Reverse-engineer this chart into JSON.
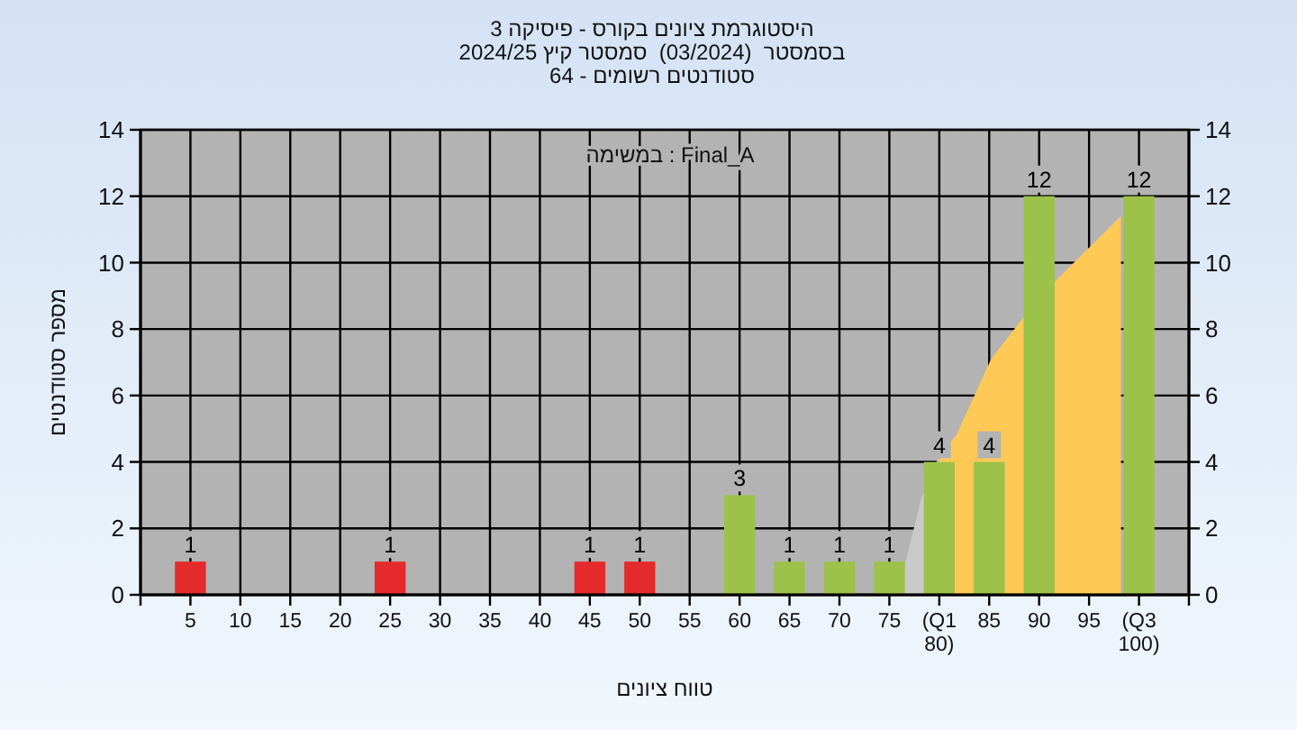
{
  "chart_data": {
    "type": "bar",
    "title": "היסטוגרמת ציונים בקורס - פיסיקה 3",
    "subtitle": "בסמסטר  (03/2024)  סמסטר קיץ 2024/25\nסטודנטים רשומים - 64",
    "xlabel": "טווח ציונים",
    "ylabel": "מספר סטודנטים",
    "annotations": [
      "במשימה : Final_A"
    ],
    "series": [
      {
        "type": "area",
        "color": "#c9c9c9",
        "x": [
          75.8,
          78.2,
          80
        ],
        "values": [
          0,
          2.9,
          4.2
        ]
      },
      {
        "type": "area",
        "color": "#ffc955",
        "x": [
          80,
          81.7,
          85.2,
          88.3,
          91.8,
          98.2
        ],
        "values": [
          4.2,
          4.8,
          7.1,
          8.3,
          9.5,
          11.4
        ]
      },
      {
        "x": [
          5,
          25,
          45,
          50,
          60,
          65,
          70,
          75,
          80,
          85,
          90,
          100
        ],
        "values": [
          1,
          1,
          1,
          1,
          3,
          1,
          1,
          1,
          4,
          4,
          12,
          12
        ],
        "value_labels": [
          "1",
          "1",
          "1",
          "1",
          "3",
          "1",
          "1",
          "1",
          "4",
          "4",
          "12",
          "12"
        ],
        "colors": [
          "#e42a2a",
          "#e42a2a",
          "#e42a2a",
          "#e42a2a",
          "#9cc24a",
          "#9cc24a",
          "#9cc24a",
          "#9cc24a",
          "#9cc24a",
          "#9cc24a",
          "#9cc24a",
          "#9cc24a"
        ]
      }
    ],
    "xlim": [
      0,
      105
    ],
    "xticks": [
      {
        "value": 0,
        "label": null
      },
      5,
      10,
      15,
      20,
      25,
      30,
      35,
      40,
      45,
      50,
      55,
      60,
      65,
      70,
      75,
      {
        "value": 80,
        "label": "(Q1 80)"
      },
      85,
      90,
      95,
      {
        "value": 100,
        "label": "(Q3 100)"
      },
      {
        "value": 105,
        "label": null
      }
    ],
    "ylim": [
      0,
      14
    ],
    "yticks": [
      0,
      2,
      4,
      6,
      8,
      10,
      12,
      14
    ],
    "y2lim": [
      0,
      14
    ],
    "y2ticks": [
      0,
      2,
      4,
      6,
      8,
      10,
      12,
      14
    ],
    "grid": true
  }
}
